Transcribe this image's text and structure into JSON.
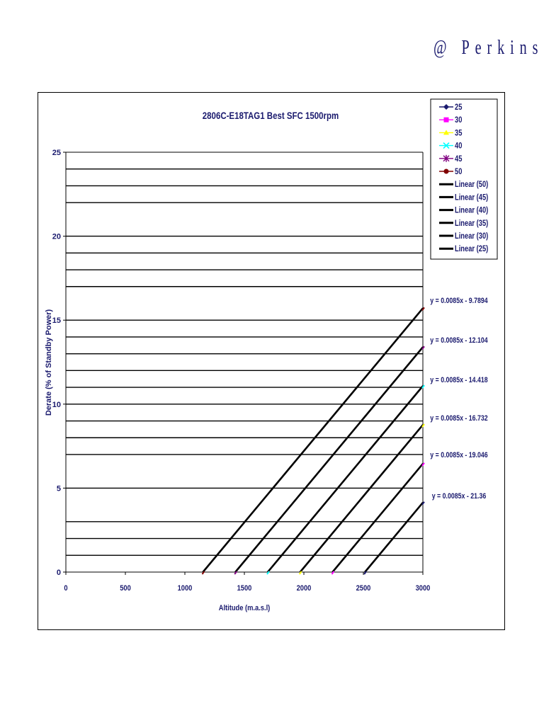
{
  "header": {
    "brand": "@ Perkins"
  },
  "chart_data": {
    "type": "line",
    "title": "2806C-E18TAG1 Best SFC 1500rpm",
    "xlabel": "Altitude (m.a.s.l)",
    "ylabel": "Derate (% of Standby Power)",
    "xlim": [
      0,
      3000
    ],
    "ylim": [
      0,
      25
    ],
    "x_ticks": [
      "0",
      "500",
      "1000",
      "1500",
      "2000",
      "2500",
      "3000"
    ],
    "y_ticks": [
      "0",
      "5",
      "10",
      "15",
      "20",
      "25"
    ],
    "grid": true,
    "legend_position": "top-right",
    "legend": [
      {
        "label": "25",
        "color": "#1a1a6e",
        "marker": "diamond"
      },
      {
        "label": "30",
        "color": "#ff00ff",
        "marker": "square"
      },
      {
        "label": "35",
        "color": "#ffff00",
        "marker": "triangle"
      },
      {
        "label": "40",
        "color": "#00ffff",
        "marker": "x"
      },
      {
        "label": "45",
        "color": "#800080",
        "marker": "star"
      },
      {
        "label": "50",
        "color": "#800000",
        "marker": "circle"
      },
      {
        "label": "Linear (50)",
        "color": "#000000",
        "marker": "line"
      },
      {
        "label": "Linear (45)",
        "color": "#000000",
        "marker": "line"
      },
      {
        "label": "Linear (40)",
        "color": "#000000",
        "marker": "line"
      },
      {
        "label": "Linear (35)",
        "color": "#000000",
        "marker": "line"
      },
      {
        "label": "Linear (30)",
        "color": "#000000",
        "marker": "line"
      },
      {
        "label": "Linear (25)",
        "color": "#000000",
        "marker": "line"
      }
    ],
    "series": [
      {
        "name": "Linear (50)",
        "slope": 0.0085,
        "intercept": -9.7894,
        "color": "#000000",
        "marker_color": "#800000",
        "equation": "y = 0.0085x - 9.7894"
      },
      {
        "name": "Linear (45)",
        "slope": 0.0085,
        "intercept": -12.104,
        "color": "#000000",
        "marker_color": "#800080",
        "equation": "y = 0.0085x - 12.104"
      },
      {
        "name": "Linear (40)",
        "slope": 0.0085,
        "intercept": -14.418,
        "color": "#000000",
        "marker_color": "#00ffff",
        "equation": "y = 0.0085x - 14.418"
      },
      {
        "name": "Linear (35)",
        "slope": 0.0085,
        "intercept": -16.732,
        "color": "#000000",
        "marker_color": "#ffff00",
        "equation": "y = 0.0085x - 16.732"
      },
      {
        "name": "Linear (30)",
        "slope": 0.0085,
        "intercept": -19.046,
        "color": "#000000",
        "marker_color": "#ff00ff",
        "equation": "y = 0.0085x - 19.046"
      },
      {
        "name": "Linear (25)",
        "slope": 0.0085,
        "intercept": -21.36,
        "color": "#000000",
        "marker_color": "#1a1a6e",
        "equation": "y = 0.0085x - 21.36"
      }
    ],
    "gridlines_y": [
      1,
      2,
      3,
      5,
      7,
      8,
      9,
      10,
      11,
      12,
      13,
      14,
      15,
      17,
      18,
      19,
      20,
      22,
      23,
      24
    ]
  }
}
